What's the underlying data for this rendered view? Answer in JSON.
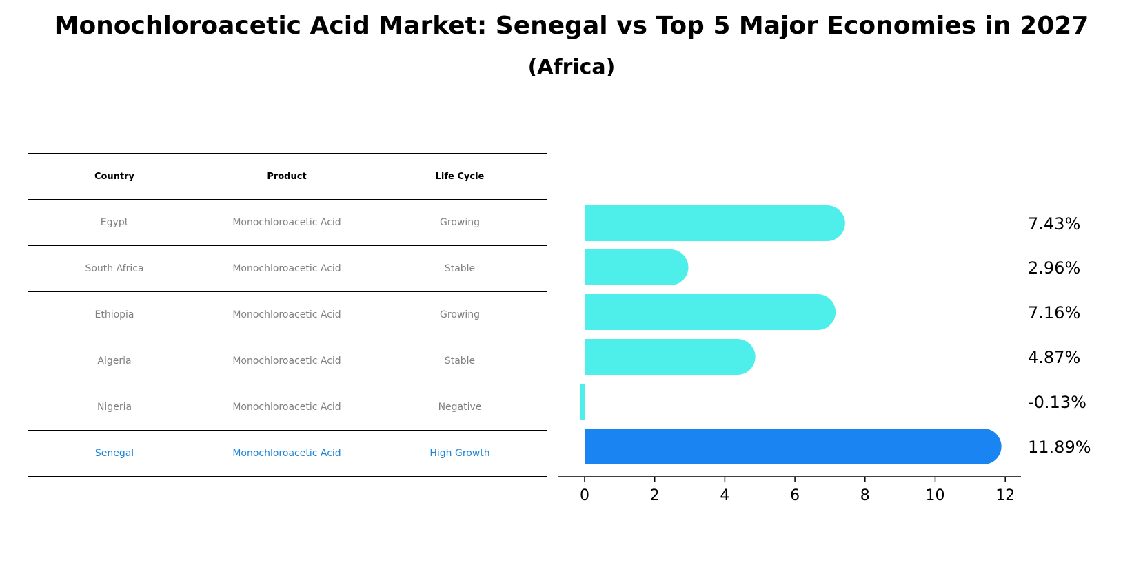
{
  "title": "Monochloroacetic Acid Market: Senegal vs Top 5 Major Economies in 2027",
  "subtitle": "(Africa)",
  "table": {
    "headers": [
      "Country",
      "Product",
      "Life Cycle"
    ],
    "rows": [
      {
        "country": "Egypt",
        "product": "Monochloroacetic Acid",
        "life_cycle": "Growing"
      },
      {
        "country": "South Africa",
        "product": "Monochloroacetic Acid",
        "life_cycle": "Stable"
      },
      {
        "country": "Ethiopia",
        "product": "Monochloroacetic Acid",
        "life_cycle": "Growing"
      },
      {
        "country": "Algeria",
        "product": "Monochloroacetic Acid",
        "life_cycle": "Stable"
      },
      {
        "country": "Nigeria",
        "product": "Monochloroacetic Acid",
        "life_cycle": "Negative"
      },
      {
        "country": "Senegal",
        "product": "Monochloroacetic Acid",
        "life_cycle": "High Growth"
      }
    ],
    "highlight_row": "Senegal",
    "highlight_color": "#1a84d8",
    "text_color": "#808080"
  },
  "chart_data": {
    "type": "bar",
    "orientation": "horizontal",
    "categories": [
      "Egypt",
      "South Africa",
      "Ethiopia",
      "Algeria",
      "Nigeria",
      "Senegal"
    ],
    "values": [
      7.43,
      2.96,
      7.16,
      4.87,
      -0.13,
      11.89
    ],
    "value_labels": [
      "7.43%",
      "2.96%",
      "7.16%",
      "4.87%",
      "-0.13%",
      "11.89%"
    ],
    "xlim": [
      -0.7,
      12.5
    ],
    "xticks": [
      0,
      2,
      4,
      6,
      8,
      10,
      12
    ],
    "colors": {
      "default": "#4eeeea",
      "highlight": "#1a84f2"
    },
    "highlight_category": "Senegal",
    "grid": false,
    "legend": "none"
  }
}
